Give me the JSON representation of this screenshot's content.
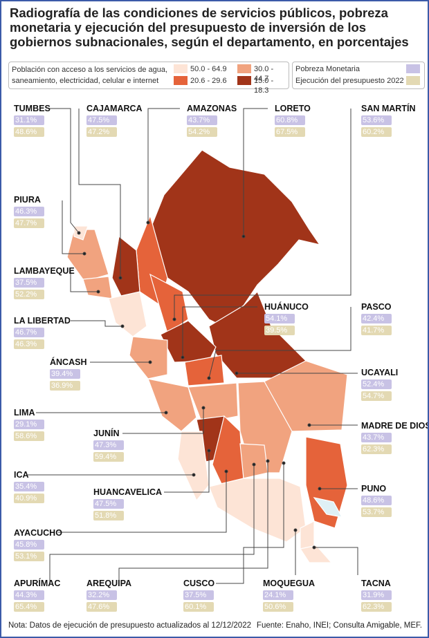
{
  "header": {
    "title": "Radiografía de las condiciones de servicios públicos, pobreza monetaria y ejecución del presupuesto de inversión de los gobiernos subnacionales, según el departamento, en porcentajes"
  },
  "legend": {
    "access_label": "Población con acceso a los servicios de agua, saneamiento, electricidad, celular e internet",
    "ranges": [
      {
        "label": "50.0 - 64.9",
        "color": "#fde4d6"
      },
      {
        "label": "30.0 - 44.7",
        "color": "#f1a37f"
      },
      {
        "label": "20.6 - 29.6",
        "color": "#e5633a"
      },
      {
        "label": "15.0 - 18.3",
        "color": "#a13419"
      }
    ],
    "indicators": [
      {
        "label": "Pobreza Monetaria",
        "color": "#c8c2e5"
      },
      {
        "label": "Ejecución del presupuesto 2022",
        "color": "#e3d9b3"
      }
    ]
  },
  "departments": [
    {
      "name": "TUMBES",
      "poverty": "31.1%",
      "budget": "48.6%"
    },
    {
      "name": "CAJAMARCA",
      "poverty": "47.5%",
      "budget": "47.2%"
    },
    {
      "name": "AMAZONAS",
      "poverty": "43.7%",
      "budget": "54.2%"
    },
    {
      "name": "LORETO",
      "poverty": "60.8%",
      "budget": "67.5%"
    },
    {
      "name": "SAN MARTÍN",
      "poverty": "53.6%",
      "budget": "60.2%"
    },
    {
      "name": "PIURA",
      "poverty": "46.3%",
      "budget": "47.7%"
    },
    {
      "name": "LAMBAYEQUE",
      "poverty": "37.5%",
      "budget": "52.2%"
    },
    {
      "name": "HUÁNUCO",
      "poverty": "54.1%",
      "budget": "39.5%"
    },
    {
      "name": "PASCO",
      "poverty": "42.4%",
      "budget": "41.7%"
    },
    {
      "name": "LA LIBERTAD",
      "poverty": "46.7%",
      "budget": "46.3%"
    },
    {
      "name": "ÁNCASH",
      "poverty": "39.4%",
      "budget": "36.9%"
    },
    {
      "name": "UCAYALI",
      "poverty": "52.4%",
      "budget": "54.7%"
    },
    {
      "name": "LIMA",
      "poverty": "29.1%",
      "budget": "58.6%"
    },
    {
      "name": "MADRE DE DIOS",
      "poverty": "43.7%",
      "budget": "62.3%"
    },
    {
      "name": "JUNÍN",
      "poverty": "47.3%",
      "budget": "59.4%"
    },
    {
      "name": "ICA",
      "poverty": "35.4%",
      "budget": "40.9%"
    },
    {
      "name": "HUANCAVELICA",
      "poverty": "47.5%",
      "budget": "51.8%"
    },
    {
      "name": "PUNO",
      "poverty": "48.6%",
      "budget": "53.7%"
    },
    {
      "name": "AYACUCHO",
      "poverty": "45.8%",
      "budget": "53.1%"
    },
    {
      "name": "APURÍMAC",
      "poverty": "44.3%",
      "budget": "65.4%"
    },
    {
      "name": "AREQUIPA",
      "poverty": "32.2%",
      "budget": "47.6%"
    },
    {
      "name": "CUSCO",
      "poverty": "37.5%",
      "budget": "60.1%"
    },
    {
      "name": "MOQUEGUA",
      "poverty": "24.1%",
      "budget": "50.6%"
    },
    {
      "name": "TACNA",
      "poverty": "31.9%",
      "budget": "62.3%"
    }
  ],
  "footer": {
    "note": "Nota: Datos de ejecución de presupuesto actualizados al 12/12/2022",
    "source": "Fuente: Enaho, INEI; Consulta Amigable, MEF."
  }
}
